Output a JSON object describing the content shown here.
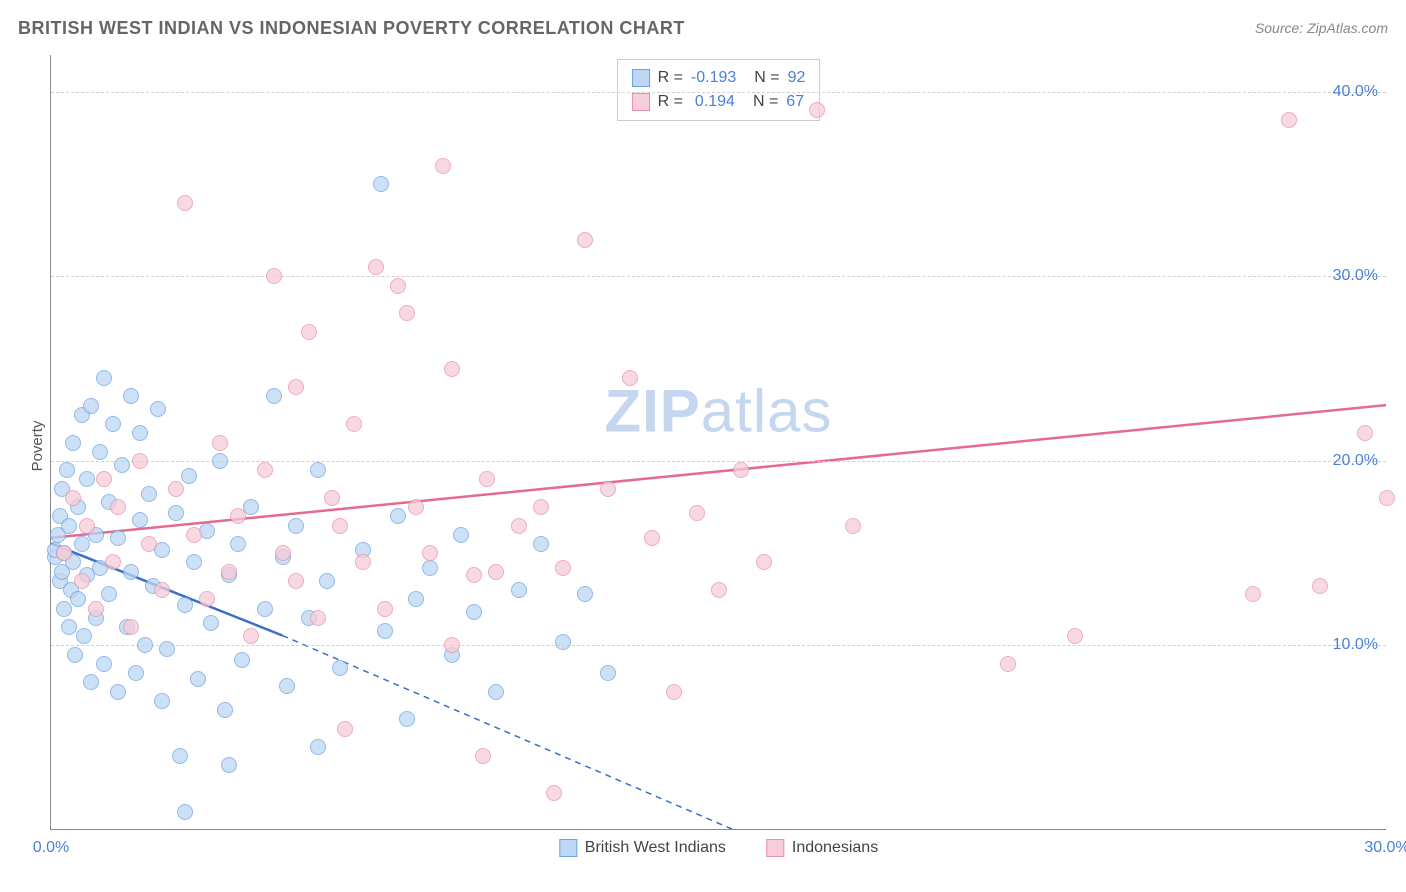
{
  "title": "BRITISH WEST INDIAN VS INDONESIAN POVERTY CORRELATION CHART",
  "source": "Source: ZipAtlas.com",
  "yaxis_label": "Poverty",
  "watermark_bold": "ZIP",
  "watermark_light": "atlas",
  "chart": {
    "type": "scatter",
    "background_color": "#ffffff",
    "grid_color": "#d0d0d0",
    "axis_color": "#888888",
    "label_color": "#4a7fd8",
    "xlim": [
      0,
      30
    ],
    "ylim": [
      0,
      42
    ],
    "yticks": [
      {
        "value": 10.0,
        "label": "10.0%"
      },
      {
        "value": 20.0,
        "label": "20.0%"
      },
      {
        "value": 30.0,
        "label": "30.0%"
      },
      {
        "value": 40.0,
        "label": "40.0%"
      }
    ],
    "xticks": [
      {
        "value": 0.0,
        "label": "0.0%"
      },
      {
        "value": 30.0,
        "label": "30.0%"
      }
    ],
    "point_radius": 8,
    "point_stroke_width": 1.5,
    "line_width": 2.5
  },
  "series": [
    {
      "id": "british_west_indians",
      "name": "British West Indians",
      "fill_color": "#bcd6f4",
      "stroke_color": "#6fa3e0",
      "line_color": "#3a6fc9",
      "R": "-0.193",
      "N": "92",
      "trend": {
        "x1": 0,
        "y1": 15.5,
        "x2": 5.2,
        "y2": 10.5,
        "dash_x2": 15.3,
        "dash_y2": 0
      },
      "points": [
        [
          0.1,
          14.8
        ],
        [
          0.1,
          15.2
        ],
        [
          0.15,
          16.0
        ],
        [
          0.2,
          13.5
        ],
        [
          0.2,
          17.0
        ],
        [
          0.25,
          14.0
        ],
        [
          0.25,
          18.5
        ],
        [
          0.3,
          12.0
        ],
        [
          0.3,
          15.0
        ],
        [
          0.35,
          19.5
        ],
        [
          0.4,
          11.0
        ],
        [
          0.4,
          16.5
        ],
        [
          0.45,
          13.0
        ],
        [
          0.5,
          21.0
        ],
        [
          0.5,
          14.5
        ],
        [
          0.55,
          9.5
        ],
        [
          0.6,
          17.5
        ],
        [
          0.6,
          12.5
        ],
        [
          0.7,
          22.5
        ],
        [
          0.7,
          15.5
        ],
        [
          0.75,
          10.5
        ],
        [
          0.8,
          19.0
        ],
        [
          0.8,
          13.8
        ],
        [
          0.9,
          23.0
        ],
        [
          0.9,
          8.0
        ],
        [
          1.0,
          16.0
        ],
        [
          1.0,
          11.5
        ],
        [
          1.1,
          20.5
        ],
        [
          1.1,
          14.2
        ],
        [
          1.2,
          24.5
        ],
        [
          1.2,
          9.0
        ],
        [
          1.3,
          17.8
        ],
        [
          1.3,
          12.8
        ],
        [
          1.4,
          22.0
        ],
        [
          1.5,
          15.8
        ],
        [
          1.5,
          7.5
        ],
        [
          1.6,
          19.8
        ],
        [
          1.7,
          11.0
        ],
        [
          1.8,
          23.5
        ],
        [
          1.8,
          14.0
        ],
        [
          1.9,
          8.5
        ],
        [
          2.0,
          16.8
        ],
        [
          2.0,
          21.5
        ],
        [
          2.1,
          10.0
        ],
        [
          2.2,
          18.2
        ],
        [
          2.3,
          13.2
        ],
        [
          2.4,
          22.8
        ],
        [
          2.5,
          15.2
        ],
        [
          2.5,
          7.0
        ],
        [
          2.6,
          9.8
        ],
        [
          2.8,
          17.2
        ],
        [
          2.9,
          4.0
        ],
        [
          3.0,
          12.2
        ],
        [
          3.0,
          1.0
        ],
        [
          3.1,
          19.2
        ],
        [
          3.2,
          14.5
        ],
        [
          3.3,
          8.2
        ],
        [
          3.5,
          16.2
        ],
        [
          3.6,
          11.2
        ],
        [
          3.8,
          20.0
        ],
        [
          3.9,
          6.5
        ],
        [
          4.0,
          13.8
        ],
        [
          4.0,
          3.5
        ],
        [
          4.2,
          15.5
        ],
        [
          4.3,
          9.2
        ],
        [
          4.5,
          17.5
        ],
        [
          4.8,
          12.0
        ],
        [
          5.0,
          23.5
        ],
        [
          5.2,
          14.8
        ],
        [
          5.3,
          7.8
        ],
        [
          5.5,
          16.5
        ],
        [
          5.8,
          11.5
        ],
        [
          6.0,
          19.5
        ],
        [
          6.0,
          4.5
        ],
        [
          6.2,
          13.5
        ],
        [
          6.5,
          8.8
        ],
        [
          7.0,
          15.2
        ],
        [
          7.4,
          35.0
        ],
        [
          7.5,
          10.8
        ],
        [
          7.8,
          17.0
        ],
        [
          8.0,
          6.0
        ],
        [
          8.2,
          12.5
        ],
        [
          8.5,
          14.2
        ],
        [
          9.0,
          9.5
        ],
        [
          9.2,
          16.0
        ],
        [
          9.5,
          11.8
        ],
        [
          10.0,
          7.5
        ],
        [
          10.5,
          13.0
        ],
        [
          11.0,
          15.5
        ],
        [
          11.5,
          10.2
        ],
        [
          12.0,
          12.8
        ],
        [
          12.5,
          8.5
        ]
      ]
    },
    {
      "id": "indonesians",
      "name": "Indonesians",
      "fill_color": "#f6cdd8",
      "stroke_color": "#e793aa",
      "line_color": "#e56b8e",
      "R": "0.194",
      "N": "67",
      "trend": {
        "x1": 0,
        "y1": 15.8,
        "x2": 30,
        "y2": 23.0
      },
      "points": [
        [
          0.3,
          15.0
        ],
        [
          0.5,
          18.0
        ],
        [
          0.7,
          13.5
        ],
        [
          0.8,
          16.5
        ],
        [
          1.0,
          12.0
        ],
        [
          1.2,
          19.0
        ],
        [
          1.4,
          14.5
        ],
        [
          1.5,
          17.5
        ],
        [
          1.8,
          11.0
        ],
        [
          2.0,
          20.0
        ],
        [
          2.2,
          15.5
        ],
        [
          2.5,
          13.0
        ],
        [
          2.8,
          18.5
        ],
        [
          3.0,
          34.0
        ],
        [
          3.2,
          16.0
        ],
        [
          3.5,
          12.5
        ],
        [
          3.8,
          21.0
        ],
        [
          4.0,
          14.0
        ],
        [
          4.2,
          17.0
        ],
        [
          4.5,
          10.5
        ],
        [
          4.8,
          19.5
        ],
        [
          5.0,
          30.0
        ],
        [
          5.2,
          15.0
        ],
        [
          5.5,
          13.5
        ],
        [
          5.5,
          24.0
        ],
        [
          5.8,
          27.0
        ],
        [
          6.0,
          11.5
        ],
        [
          6.3,
          18.0
        ],
        [
          6.5,
          16.5
        ],
        [
          6.6,
          5.5
        ],
        [
          6.8,
          22.0
        ],
        [
          7.0,
          14.5
        ],
        [
          7.3,
          30.5
        ],
        [
          7.5,
          12.0
        ],
        [
          7.8,
          29.5
        ],
        [
          8.0,
          28.0
        ],
        [
          8.2,
          17.5
        ],
        [
          8.5,
          15.0
        ],
        [
          8.8,
          36.0
        ],
        [
          9.0,
          25.0
        ],
        [
          9.0,
          10.0
        ],
        [
          9.5,
          13.8
        ],
        [
          9.7,
          4.0
        ],
        [
          9.8,
          19.0
        ],
        [
          10.0,
          14.0
        ],
        [
          10.5,
          16.5
        ],
        [
          11.0,
          17.5
        ],
        [
          11.3,
          2.0
        ],
        [
          11.5,
          14.2
        ],
        [
          12.0,
          32.0
        ],
        [
          12.5,
          18.5
        ],
        [
          13.0,
          24.5
        ],
        [
          13.5,
          15.8
        ],
        [
          14.0,
          7.5
        ],
        [
          14.5,
          17.2
        ],
        [
          15.0,
          13.0
        ],
        [
          15.5,
          19.5
        ],
        [
          16.0,
          14.5
        ],
        [
          17.2,
          39.0
        ],
        [
          18.0,
          16.5
        ],
        [
          21.5,
          9.0
        ],
        [
          23.0,
          10.5
        ],
        [
          27.0,
          12.8
        ],
        [
          27.8,
          38.5
        ],
        [
          28.5,
          13.2
        ],
        [
          29.5,
          21.5
        ],
        [
          30.0,
          18.0
        ]
      ]
    }
  ],
  "legend_bottom": [
    {
      "label": "British West Indians",
      "series": 0
    },
    {
      "label": "Indonesians",
      "series": 1
    }
  ]
}
